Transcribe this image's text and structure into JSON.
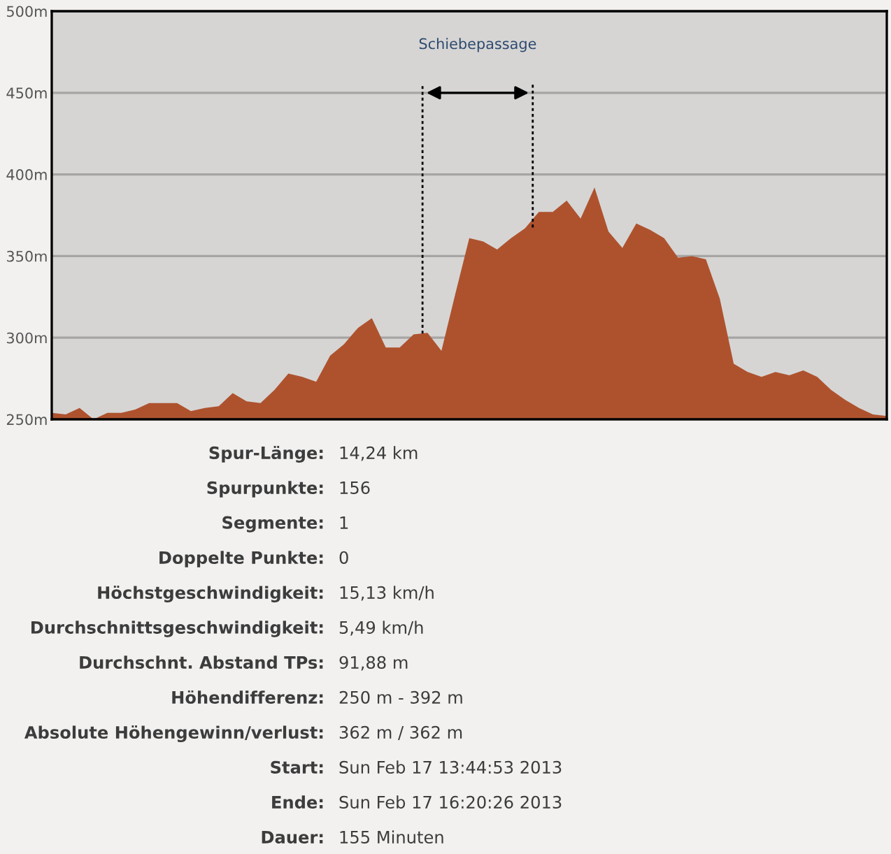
{
  "chart_data": {
    "type": "area",
    "categories": [
      null,
      null,
      null,
      null,
      null,
      null,
      null,
      null,
      null,
      null,
      null,
      null,
      null,
      null,
      null,
      null,
      null,
      null,
      null,
      null,
      null,
      null,
      null,
      null,
      null,
      null,
      null,
      null,
      null,
      null,
      null,
      null,
      null,
      null,
      null,
      null,
      null,
      null,
      null,
      null,
      null,
      null,
      null,
      null,
      null,
      null,
      null,
      null,
      null,
      null,
      null,
      null,
      null,
      null,
      null,
      null,
      null,
      null,
      null,
      null,
      null
    ],
    "series": [
      {
        "color": "#ae522e",
        "values": [
          254,
          253,
          257,
          250,
          254,
          254,
          256,
          260,
          260,
          260,
          255,
          257,
          258,
          266,
          261,
          260,
          268,
          278,
          276,
          273,
          289,
          296,
          306,
          312,
          294,
          294,
          302,
          303,
          292,
          327,
          361,
          359,
          354,
          361,
          367,
          377,
          377,
          384,
          373,
          392,
          365,
          355,
          370,
          366,
          361,
          349,
          350,
          348,
          324,
          284,
          279,
          276,
          279,
          277,
          280,
          276,
          268,
          262,
          257,
          253,
          252
        ]
      }
    ],
    "ylim": [
      250,
      500
    ],
    "yticks": [
      {
        "value": 250,
        "label": "250m"
      },
      {
        "value": 300,
        "label": "300m"
      },
      {
        "value": 350,
        "label": "350m"
      },
      {
        "value": 400,
        "label": "400m"
      },
      {
        "value": 450,
        "label": "450m"
      },
      {
        "value": 500,
        "label": "500m"
      }
    ],
    "tick_labels": "y",
    "grid": "y",
    "annotations": [
      "Schiebepassage",
      "Spur-Länge: 14,24 km",
      "Spurpunkte: 156",
      "Segmente: 1",
      "Doppelte Punkte: 0",
      "Höchstgeschwindigkeit: 15,13 km/h",
      "Durchschnittsgeschwindigkeit: 5,49 km/h",
      "Durchschnt. Abstand TPs: 91,88 m",
      "Höhendifferenz: 250 m - 392 m",
      "Absolute Höhengewinn/verlust: 362 m / 362 m",
      "Start: Sun Feb 17 13:44:53 2013",
      "Ende: Sun Feb 17 16:20:26 2013",
      "Dauer: 155 Minuten"
    ]
  }
}
